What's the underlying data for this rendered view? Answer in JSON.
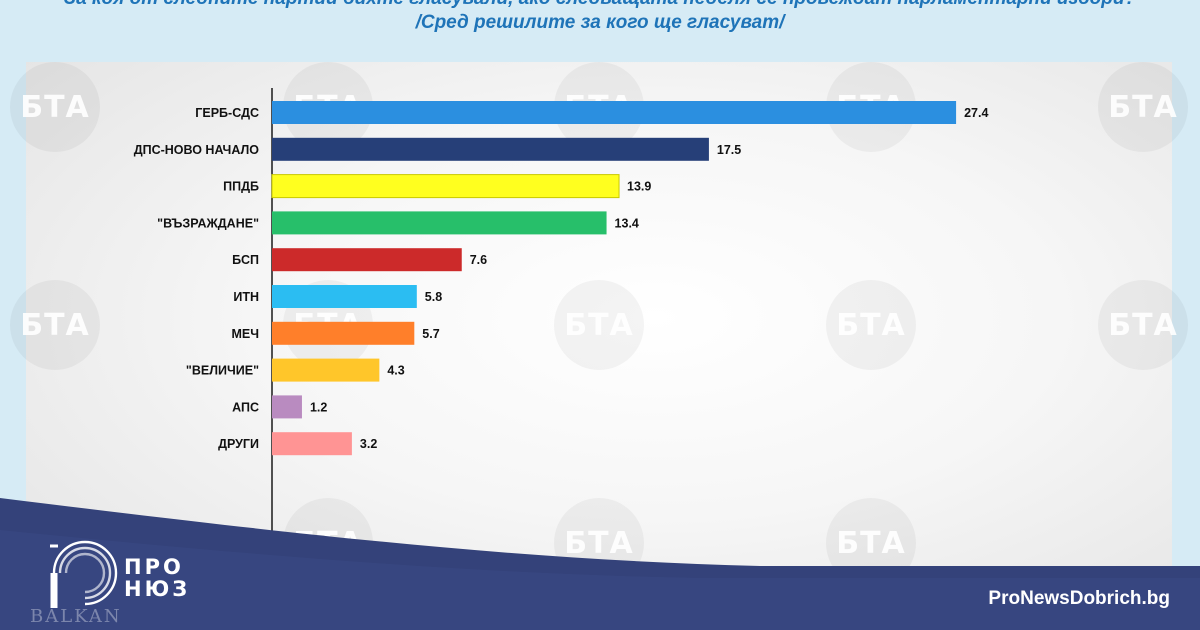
{
  "header": {
    "question": "За коя от следните партии бихте гласували, ако следващата неделя се провеждат парламентарни избори?",
    "subtitle": "/Сред решилите за кого ще гласуват/"
  },
  "watermark": {
    "text": "БТА"
  },
  "chart_data": {
    "type": "bar",
    "orientation": "horizontal",
    "categories": [
      "ГЕРБ-СДС",
      "ДПС-НОВО НАЧАЛО",
      "ППДБ",
      "\"ВЪЗРАЖДАНЕ\"",
      "БСП",
      "ИТН",
      "МЕЧ",
      "\"ВЕЛИЧИЕ\"",
      "АПС",
      "ДРУГИ"
    ],
    "values": [
      27.4,
      17.5,
      13.9,
      13.4,
      7.6,
      5.8,
      5.7,
      4.3,
      1.2,
      3.2
    ],
    "colors": [
      "#2b8fe0",
      "#263f78",
      "#ffff1f",
      "#27bf6a",
      "#cc2a2a",
      "#2bbdf2",
      "#ff7f2a",
      "#ffc62a",
      "#b98bc0",
      "#ff9494"
    ],
    "xlim": [
      0,
      30
    ],
    "grid": false,
    "legend": "none"
  },
  "branding": {
    "name_line1": "ПРО",
    "name_line2": "НЮЗ",
    "site": "ProNewsDobrich.bg",
    "corner": "BALKAN"
  }
}
